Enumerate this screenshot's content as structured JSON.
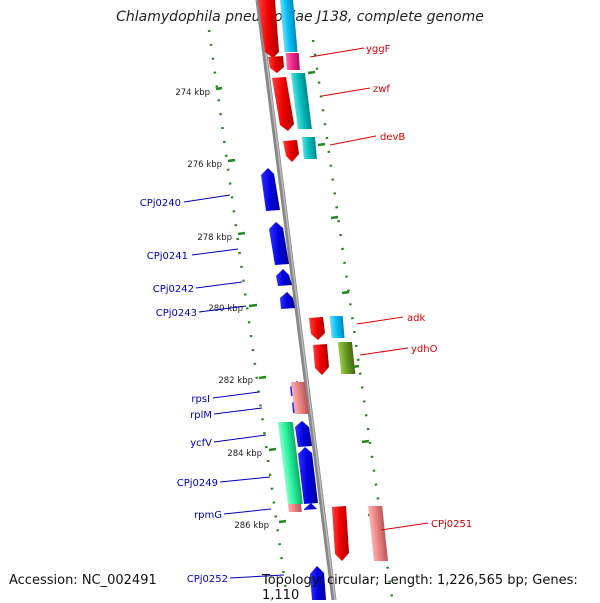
{
  "title": "Chlamydophila pneumoniae J138, complete genome",
  "footer": {
    "accession": "Accession: NC_002491",
    "topology": "Topology: circular; Length: 1,226,565 bp; Genes: 1,110"
  },
  "ticks": [
    "274 kbp",
    "276 kbp",
    "278 kbp",
    "280 kbp",
    "282 kbp",
    "284 kbp",
    "286 kbp"
  ],
  "labels_right": [
    "yggF",
    "zwf",
    "devB",
    "adk",
    "ydhO",
    "CPj0251"
  ],
  "labels_left": [
    "CPj0240",
    "CPj0241",
    "CPj0242",
    "CPj0243",
    "rpsI",
    "rplM",
    "ycfV",
    "CPj0249",
    "rpmG",
    "CPj0252"
  ],
  "colors": {
    "forward": "#ee0000",
    "reverse": "#0000dd",
    "cyan": "#00bbee",
    "teal": "#00bbbb",
    "magenta": "#ee2288",
    "olive": "#669922",
    "pink": "#e88080",
    "green": "#22ee99",
    "dotted_track": "#228822",
    "backbone": "#888888"
  }
}
